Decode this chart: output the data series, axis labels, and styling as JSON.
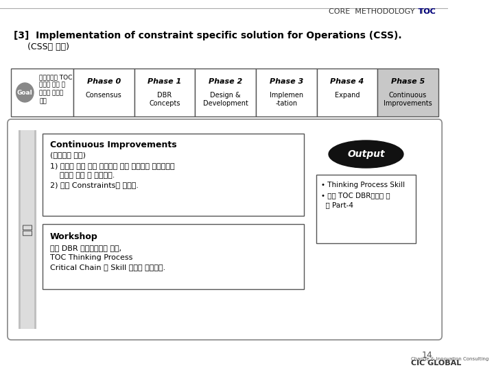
{
  "title_line1": "CORE  METHODOLOGY  TOC",
  "header_line1": "[3]  Implementation of constraint specific solution for Operations (CSS).",
  "header_line2": "     (CSS의 실행)",
  "goal_label": "Goal",
  "goal_text": "경영진과의 TOC\n추진을 위한 공\n감대와 목표의\n정의",
  "phases": [
    {
      "title": "Phase 0",
      "sub": "Consensus"
    },
    {
      "title": "Phase 1",
      "sub": "DBR\nConcepts"
    },
    {
      "title": "Phase 2",
      "sub": "Design &\nDevelopment"
    },
    {
      "title": "Phase 3",
      "sub": "Implemen\n-tation"
    },
    {
      "title": "Phase 4",
      "sub": "Expand"
    },
    {
      "title": "Phase 5",
      "sub": "Continuous\nImprovements"
    }
  ],
  "ci_title": "Continuous Improvements",
  "ci_sub": "(지속적인 개선)",
  "ci_body": "1) 시스템 내의 모든 문제들에 대한 지속적인 개선과정을\n    통해서 수정 및 보완한다.\n2) 다른 Constraints을 찾는다.",
  "ws_title": "Workshop",
  "ws_body": "내부 DBR 전문가로서는 물론,\nTOC Thinking Process\nCritical Chain 의 Skill 훈련을 실시한다.",
  "output_label": "Output",
  "output_body": "• Thinking Process Skill\n• 내부 TOC DBR전문가 훈\n  련 Part-4",
  "sidebar_text": "단밥",
  "page_num": "14",
  "bg_color": "#ffffff",
  "phase5_bg": "#d0d0d0",
  "box_border": "#555555",
  "header_color": "#000000",
  "title_color": "#000000",
  "goal_bg": "#888888",
  "output_ellipse_bg": "#222222",
  "output_ellipse_text": "#ffffff"
}
